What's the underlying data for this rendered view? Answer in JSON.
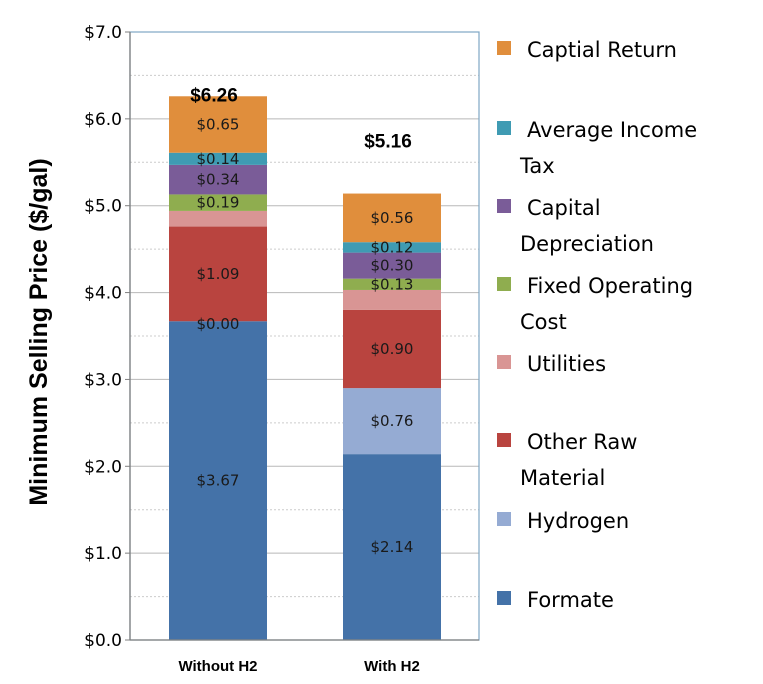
{
  "chart_data": {
    "type": "bar",
    "stacked": true,
    "categories": [
      "Without H2",
      "With H2"
    ],
    "totals": [
      "$6.26",
      "$5.16"
    ],
    "ylabel": "Minimum Selling Price ($/gal)",
    "ylim": [
      0,
      7
    ],
    "y_ticks": [
      "$0.0",
      "$1.0",
      "$2.0",
      "$3.0",
      "$4.0",
      "$5.0",
      "$6.0",
      "$7.0"
    ],
    "grid": true,
    "legend_position": "right",
    "series": [
      {
        "name": "Formate",
        "legend_lines": [
          "Formate"
        ],
        "color": "#4472a8",
        "values": [
          3.67,
          2.14
        ],
        "labels": [
          "$3.67",
          "$2.14"
        ]
      },
      {
        "name": "Hydrogen",
        "legend_lines": [
          "Hydrogen"
        ],
        "color": "#95abd3",
        "values": [
          0.0,
          0.76
        ],
        "labels": [
          "$0.00",
          "$0.76"
        ]
      },
      {
        "name": "Other Raw Material",
        "legend_lines": [
          "Other Raw",
          "Material"
        ],
        "color": "#b9443f",
        "values": [
          1.09,
          0.9
        ],
        "labels": [
          "$1.09",
          "$0.90"
        ]
      },
      {
        "name": "Utilities",
        "legend_lines": [
          "Utilities"
        ],
        "color": "#d99594",
        "values": [
          0.18,
          0.23
        ],
        "labels": [
          "",
          ""
        ]
      },
      {
        "name": "Fixed Operating Cost",
        "legend_lines": [
          "Fixed Operating",
          "Cost"
        ],
        "color": "#8fad4f",
        "values": [
          0.19,
          0.13
        ],
        "labels": [
          "$0.19",
          "$0.13"
        ]
      },
      {
        "name": "Capital Depreciation",
        "legend_lines": [
          "Capital",
          "Depreciation"
        ],
        "color": "#7a5c98",
        "values": [
          0.34,
          0.3
        ],
        "labels": [
          "$0.34",
          "$0.30"
        ]
      },
      {
        "name": "Average Income Tax",
        "legend_lines": [
          "Average Income",
          "Tax"
        ],
        "color": "#3f9bb3",
        "values": [
          0.14,
          0.12
        ],
        "labels": [
          "$0.14",
          "$0.12"
        ]
      },
      {
        "name": "Captial Return",
        "legend_lines": [
          "Captial Return"
        ],
        "color": "#e08e3c",
        "values": [
          0.65,
          0.56
        ],
        "labels": [
          "$0.65",
          "$0.56"
        ]
      }
    ]
  }
}
